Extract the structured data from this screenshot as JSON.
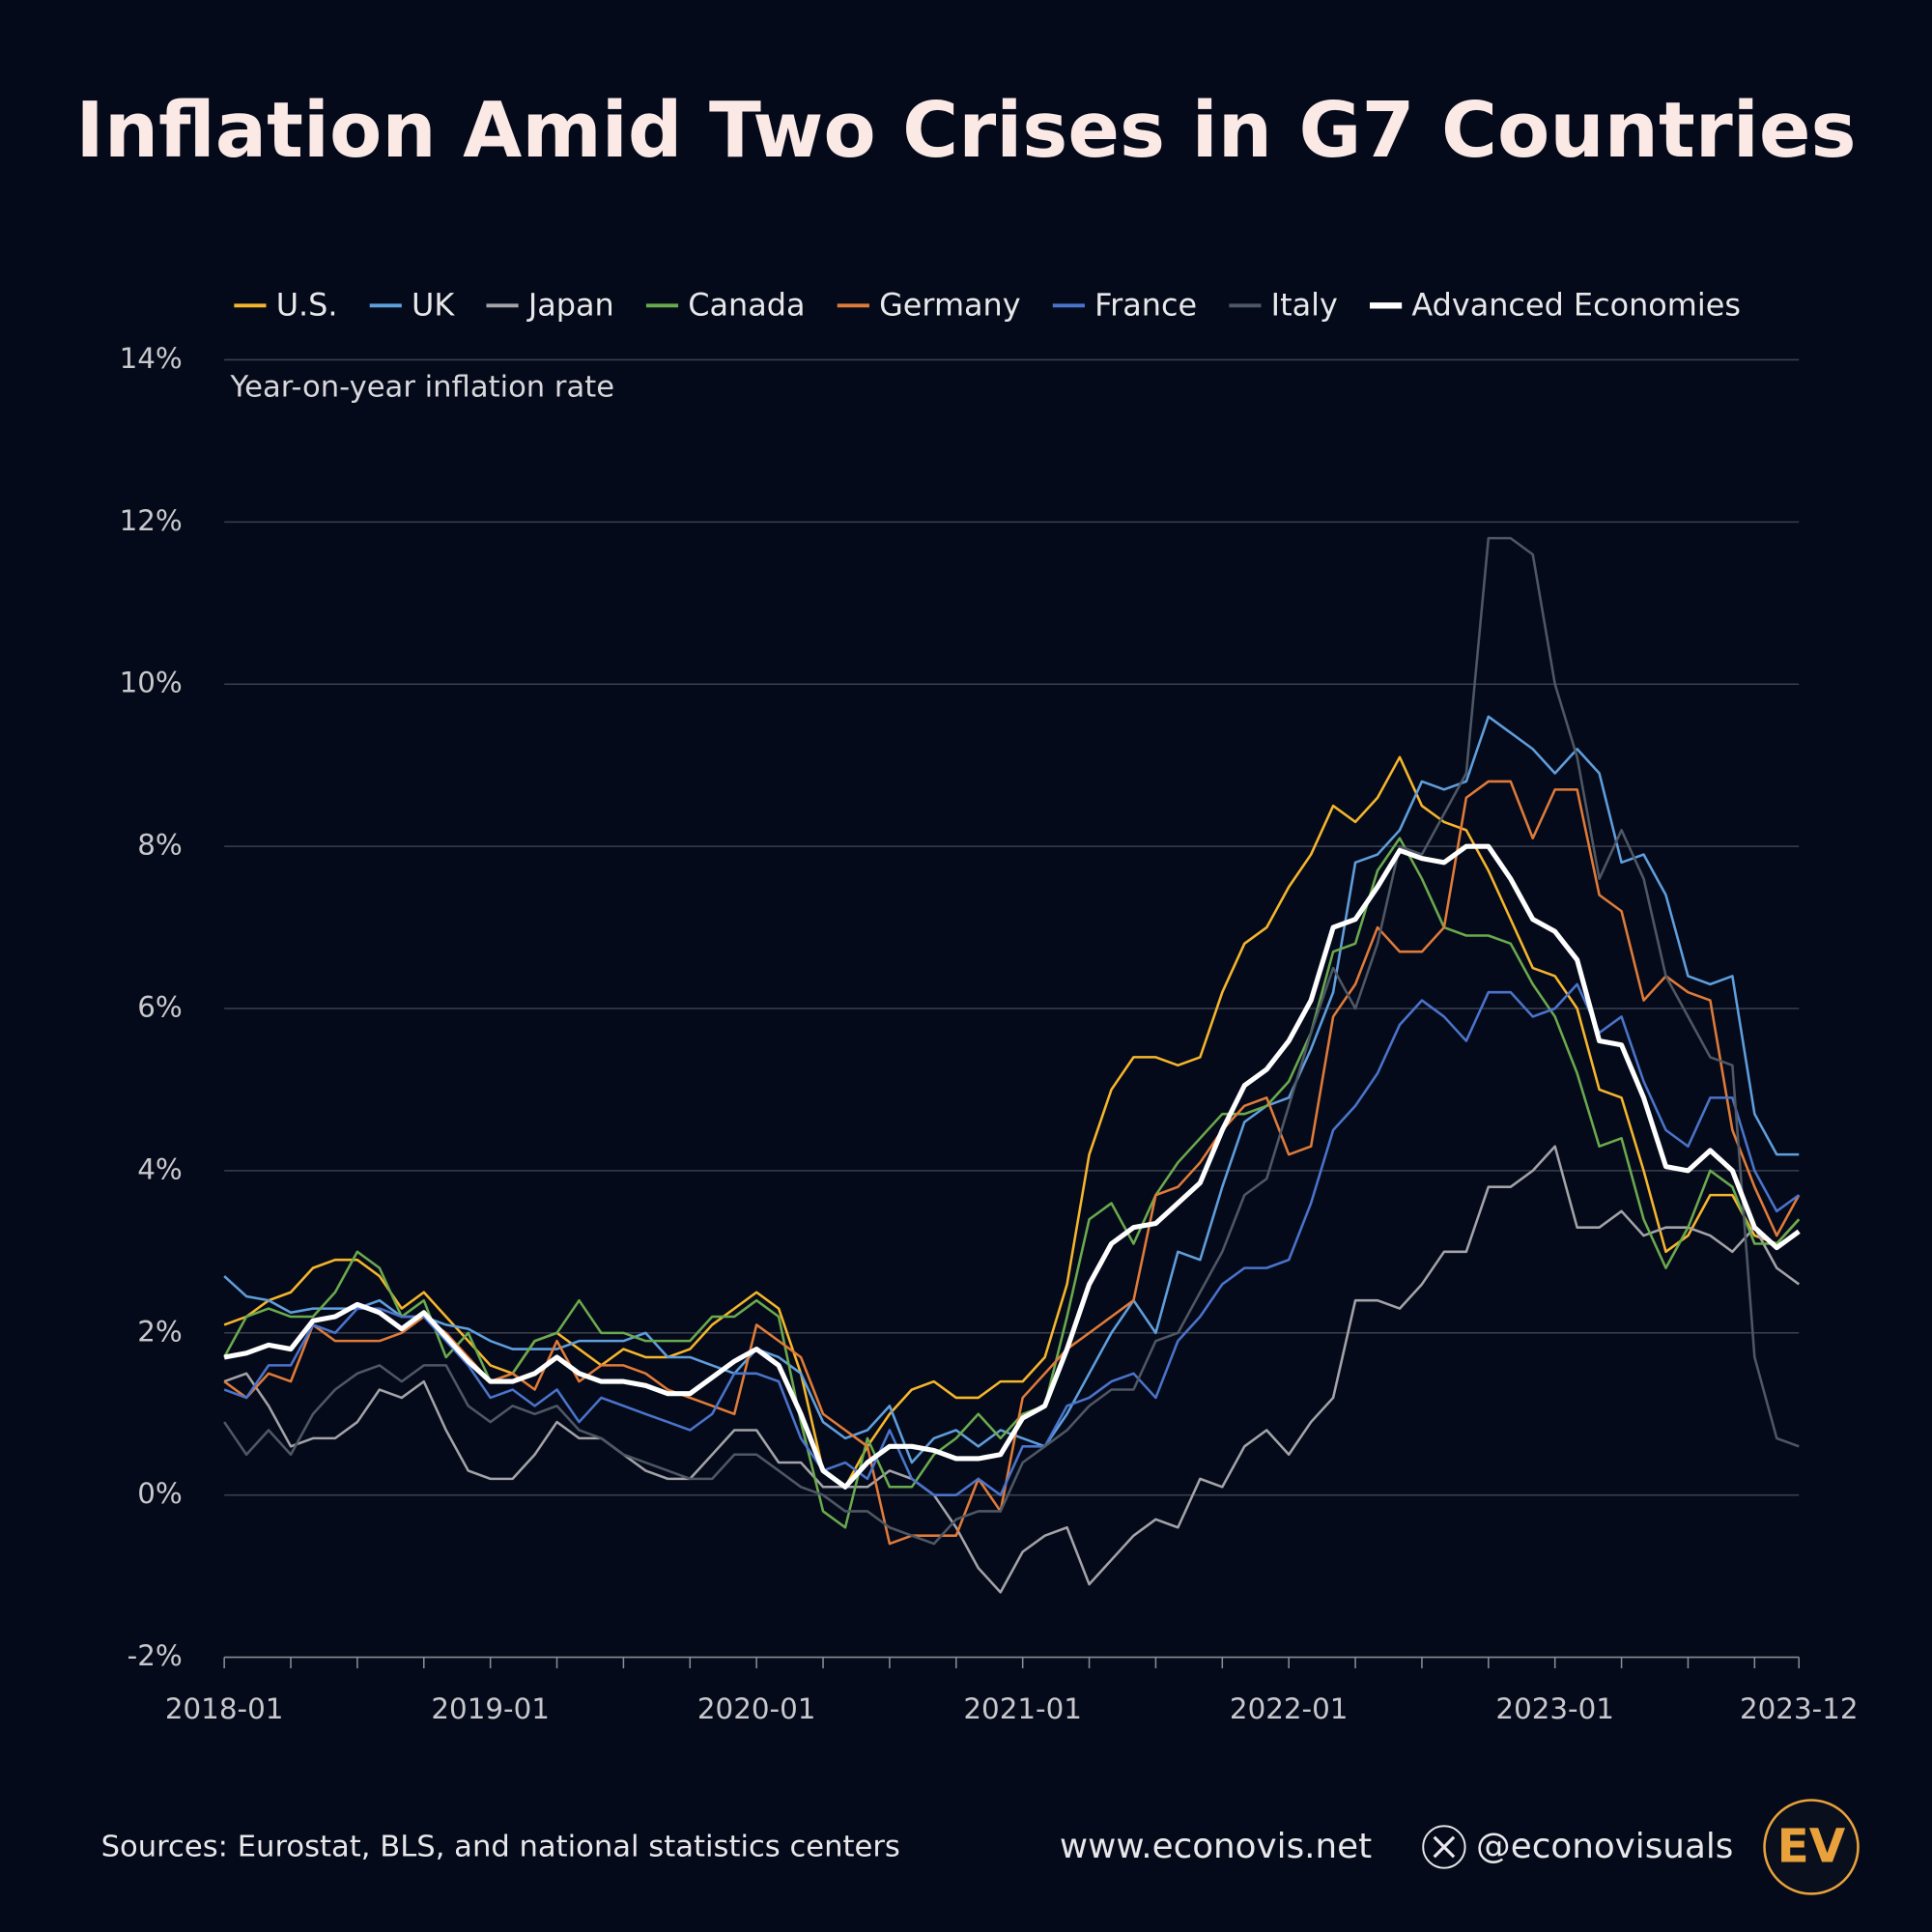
{
  "chart_data": {
    "type": "line",
    "title": "Inflation Amid Two Crises in G7 Countries",
    "y_label": "Year-on-year inflation rate",
    "categories": [
      "2018-01",
      null,
      null,
      null,
      null,
      null,
      null,
      null,
      null,
      null,
      null,
      null,
      "2019-01",
      null,
      null,
      null,
      null,
      null,
      null,
      null,
      null,
      null,
      null,
      null,
      "2020-01",
      null,
      null,
      null,
      null,
      null,
      null,
      null,
      null,
      null,
      null,
      null,
      "2021-01",
      null,
      null,
      null,
      null,
      null,
      null,
      null,
      null,
      null,
      null,
      null,
      "2022-01",
      null,
      null,
      null,
      null,
      null,
      null,
      null,
      null,
      null,
      null,
      null,
      "2023-01",
      null,
      null,
      null,
      null,
      null,
      null,
      null,
      null,
      null,
      null,
      "2023-12"
    ],
    "ylim": [
      -2,
      14
    ],
    "yticks": [
      {
        "value": -2,
        "label": "-2%"
      },
      {
        "value": 0,
        "label": "0%"
      },
      {
        "value": 2,
        "label": "2%"
      },
      {
        "value": 4,
        "label": "4%"
      },
      {
        "value": 6,
        "label": "6%"
      },
      {
        "value": 8,
        "label": "8%"
      },
      {
        "value": 10,
        "label": "10%"
      },
      {
        "value": 12,
        "label": "12%"
      },
      {
        "value": 14,
        "label": "14%"
      }
    ],
    "grid": true,
    "series": [
      {
        "name": "U.S.",
        "color": "#f6b62c",
        "values": [
          2.1,
          2.2,
          2.4,
          2.5,
          2.8,
          2.9,
          2.9,
          2.7,
          2.3,
          2.5,
          2.2,
          1.9,
          1.6,
          1.5,
          1.9,
          2.0,
          1.8,
          1.6,
          1.8,
          1.7,
          1.7,
          1.8,
          2.1,
          2.3,
          2.5,
          2.3,
          1.5,
          0.3,
          0.1,
          0.6,
          1.0,
          1.3,
          1.4,
          1.2,
          1.2,
          1.4,
          1.4,
          1.7,
          2.6,
          4.2,
          5.0,
          5.4,
          5.4,
          5.3,
          5.4,
          6.2,
          6.8,
          7.0,
          7.5,
          7.9,
          8.5,
          8.3,
          8.6,
          9.1,
          8.5,
          8.3,
          8.2,
          7.7,
          7.1,
          6.5,
          6.4,
          6.0,
          5.0,
          4.9,
          4.0,
          3.0,
          3.2,
          3.7,
          3.7,
          3.2,
          3.1,
          3.4
        ]
      },
      {
        "name": "UK",
        "color": "#5f9fdc",
        "values": [
          2.7,
          2.45,
          2.4,
          2.25,
          2.3,
          2.3,
          2.3,
          2.4,
          2.2,
          2.2,
          2.1,
          2.05,
          1.9,
          1.8,
          1.8,
          1.8,
          1.9,
          1.9,
          1.9,
          2.0,
          1.7,
          1.7,
          1.6,
          1.5,
          1.8,
          1.7,
          1.5,
          0.9,
          0.7,
          0.8,
          1.1,
          0.4,
          0.7,
          0.8,
          0.6,
          0.8,
          0.7,
          0.6,
          1.0,
          1.5,
          2.0,
          2.4,
          2.0,
          3.0,
          2.9,
          3.8,
          4.6,
          4.8,
          4.9,
          5.5,
          6.2,
          7.8,
          7.9,
          8.2,
          8.8,
          8.7,
          8.8,
          9.6,
          9.4,
          9.2,
          8.9,
          9.2,
          8.9,
          7.8,
          7.9,
          7.4,
          6.4,
          6.3,
          6.4,
          4.7,
          4.2,
          4.2
        ]
      },
      {
        "name": "Japan",
        "color": "#a3a3a8",
        "values": [
          1.4,
          1.5,
          1.1,
          0.6,
          0.7,
          0.7,
          0.9,
          1.3,
          1.2,
          1.4,
          0.8,
          0.3,
          0.2,
          0.2,
          0.5,
          0.9,
          0.7,
          0.7,
          0.5,
          0.3,
          0.2,
          0.2,
          0.5,
          0.8,
          0.8,
          0.4,
          0.4,
          0.1,
          0.1,
          0.1,
          0.3,
          0.2,
          0.0,
          -0.4,
          -0.9,
          -1.2,
          -0.7,
          -0.5,
          -0.4,
          -1.1,
          -0.8,
          -0.5,
          -0.3,
          -0.4,
          0.2,
          0.1,
          0.6,
          0.8,
          0.5,
          0.9,
          1.2,
          2.4,
          2.4,
          2.3,
          2.6,
          3.0,
          3.0,
          3.8,
          3.8,
          4.0,
          4.3,
          3.3,
          3.3,
          3.5,
          3.2,
          3.3,
          3.3,
          3.2,
          3.0,
          3.3,
          2.8,
          2.6
        ]
      },
      {
        "name": "Canada",
        "color": "#6aaa4e",
        "values": [
          1.7,
          2.2,
          2.3,
          2.2,
          2.2,
          2.5,
          3.0,
          2.8,
          2.2,
          2.4,
          1.7,
          2.0,
          1.4,
          1.5,
          1.9,
          2.0,
          2.4,
          2.0,
          2.0,
          1.9,
          1.9,
          1.9,
          2.2,
          2.2,
          2.4,
          2.2,
          0.9,
          -0.2,
          -0.4,
          0.7,
          0.1,
          0.1,
          0.5,
          0.7,
          1.0,
          0.7,
          1.0,
          1.1,
          2.2,
          3.4,
          3.6,
          3.1,
          3.7,
          4.1,
          4.4,
          4.7,
          4.7,
          4.8,
          5.1,
          5.7,
          6.7,
          6.8,
          7.7,
          8.1,
          7.6,
          7.0,
          6.9,
          6.9,
          6.8,
          6.3,
          5.9,
          5.2,
          4.3,
          4.4,
          3.4,
          2.8,
          3.3,
          4.0,
          3.8,
          3.1,
          3.1,
          3.4
        ]
      },
      {
        "name": "Germany",
        "color": "#e07b39",
        "values": [
          1.4,
          1.2,
          1.5,
          1.4,
          2.1,
          1.9,
          1.9,
          1.9,
          2.0,
          2.2,
          2.0,
          1.7,
          1.4,
          1.5,
          1.3,
          1.9,
          1.4,
          1.6,
          1.6,
          1.5,
          1.3,
          1.2,
          1.1,
          1.0,
          2.1,
          1.9,
          1.7,
          1.0,
          0.8,
          0.6,
          -0.6,
          -0.5,
          -0.5,
          -0.5,
          0.2,
          -0.2,
          1.2,
          1.5,
          1.8,
          2.0,
          2.2,
          2.4,
          3.7,
          3.8,
          4.1,
          4.5,
          4.8,
          4.9,
          4.2,
          4.3,
          5.9,
          6.3,
          7.0,
          6.7,
          6.7,
          7.0,
          8.6,
          8.8,
          8.8,
          8.1,
          8.7,
          8.7,
          7.4,
          7.2,
          6.1,
          6.4,
          6.2,
          6.1,
          4.5,
          3.8,
          3.2,
          3.7
        ]
      },
      {
        "name": "France",
        "color": "#4a74cc",
        "values": [
          1.3,
          1.2,
          1.6,
          1.6,
          2.1,
          2.0,
          2.3,
          2.3,
          2.2,
          2.2,
          1.9,
          1.6,
          1.2,
          1.3,
          1.1,
          1.3,
          0.9,
          1.2,
          1.1,
          1.0,
          0.9,
          0.8,
          1.0,
          1.5,
          1.5,
          1.4,
          0.7,
          0.3,
          0.4,
          0.2,
          0.8,
          0.2,
          0.0,
          0.0,
          0.2,
          0.0,
          0.6,
          0.6,
          1.1,
          1.2,
          1.4,
          1.5,
          1.2,
          1.9,
          2.2,
          2.6,
          2.8,
          2.8,
          2.9,
          3.6,
          4.5,
          4.8,
          5.2,
          5.8,
          6.1,
          5.9,
          5.6,
          6.2,
          6.2,
          5.9,
          6.0,
          6.3,
          5.7,
          5.9,
          5.1,
          4.5,
          4.3,
          4.9,
          4.9,
          4.0,
          3.5,
          3.7
        ]
      },
      {
        "name": "Italy",
        "color": "#4e5864",
        "values": [
          0.9,
          0.5,
          0.8,
          0.5,
          1.0,
          1.3,
          1.5,
          1.6,
          1.4,
          1.6,
          1.6,
          1.1,
          0.9,
          1.1,
          1.0,
          1.1,
          0.8,
          0.7,
          0.5,
          0.4,
          0.3,
          0.2,
          0.2,
          0.5,
          0.5,
          0.3,
          0.1,
          0.0,
          -0.2,
          -0.2,
          -0.4,
          -0.5,
          -0.6,
          -0.3,
          -0.2,
          -0.2,
          0.4,
          0.6,
          0.8,
          1.1,
          1.3,
          1.3,
          1.9,
          2.0,
          2.5,
          3.0,
          3.7,
          3.9,
          4.8,
          5.7,
          6.5,
          6.0,
          6.8,
          8.0,
          7.9,
          8.4,
          8.9,
          11.8,
          11.8,
          11.6,
          10.0,
          9.1,
          7.6,
          8.2,
          7.6,
          6.4,
          5.9,
          5.4,
          5.3,
          1.7,
          0.7,
          0.6
        ]
      },
      {
        "name": "Advanced Economies",
        "color": "#ffffff",
        "values": [
          1.7,
          1.75,
          1.85,
          1.8,
          2.15,
          2.2,
          2.35,
          2.25,
          2.05,
          2.25,
          1.95,
          1.65,
          1.4,
          1.4,
          1.5,
          1.7,
          1.5,
          1.4,
          1.4,
          1.35,
          1.25,
          1.25,
          1.45,
          1.65,
          1.8,
          1.6,
          1.0,
          0.3,
          0.1,
          0.4,
          0.6,
          0.6,
          0.55,
          0.45,
          0.45,
          0.5,
          0.95,
          1.1,
          1.8,
          2.6,
          3.1,
          3.3,
          3.35,
          3.6,
          3.85,
          4.5,
          5.05,
          5.25,
          5.6,
          6.1,
          7.0,
          7.1,
          7.5,
          7.95,
          7.85,
          7.8,
          8.0,
          8.0,
          7.6,
          7.1,
          6.95,
          6.6,
          5.6,
          5.55,
          4.9,
          4.05,
          4.0,
          4.25,
          4.0,
          3.3,
          3.05,
          3.25
        ]
      }
    ]
  },
  "footer": {
    "sources": "Sources: Eurostat, BLS, and national statistics centers",
    "website": "www.econovis.net",
    "handle": "@econovisuals",
    "logo": "EV"
  }
}
